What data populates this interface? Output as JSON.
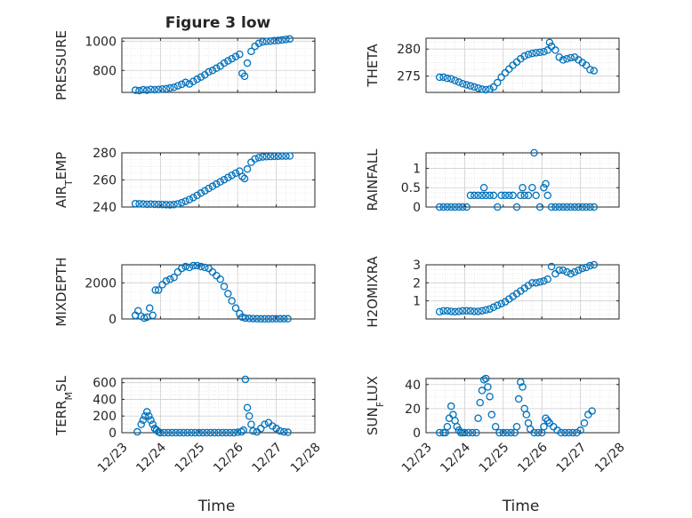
{
  "figure_title": "Figure 3 low",
  "marker_color": "#0072BD",
  "chart_data": [
    {
      "type": "scatter",
      "ylabel": "PRESSURE",
      "ylabel_parts": [
        {
          "t": "PRESSURE"
        }
      ],
      "xlim": [
        23,
        28
      ],
      "ylim": [
        650,
        1020
      ],
      "yticks": [
        800,
        1000
      ],
      "xticks": [
        23,
        24,
        25,
        26,
        27,
        28
      ],
      "x": [
        23.35,
        23.45,
        23.55,
        23.65,
        23.75,
        23.85,
        23.95,
        24.05,
        24.15,
        24.25,
        24.35,
        24.45,
        24.55,
        24.65,
        24.75,
        24.85,
        24.95,
        25.05,
        25.15,
        25.25,
        25.35,
        25.45,
        25.55,
        25.65,
        25.75,
        25.85,
        25.95,
        26.05,
        26.12,
        26.18,
        26.25,
        26.35,
        26.45,
        26.55,
        26.65,
        26.75,
        26.85,
        26.95,
        27.05,
        27.15,
        27.25,
        27.35
      ],
      "y": [
        665,
        662,
        668,
        665,
        670,
        668,
        670,
        673,
        675,
        680,
        685,
        695,
        705,
        718,
        708,
        725,
        740,
        755,
        770,
        790,
        800,
        815,
        830,
        850,
        865,
        880,
        895,
        910,
        780,
        760,
        850,
        930,
        965,
        985,
        995,
        998,
        1000,
        1003,
        1005,
        1008,
        1012,
        1015
      ]
    },
    {
      "type": "scatter",
      "ylabel": "THETA",
      "ylabel_parts": [
        {
          "t": "THETA"
        }
      ],
      "xlim": [
        23,
        28
      ],
      "ylim": [
        272,
        282
      ],
      "yticks": [
        275,
        280
      ],
      "xticks": [
        23,
        24,
        25,
        26,
        27,
        28
      ],
      "x": [
        23.35,
        23.45,
        23.55,
        23.65,
        23.75,
        23.85,
        23.95,
        24.05,
        24.15,
        24.25,
        24.35,
        24.45,
        24.55,
        24.65,
        24.75,
        24.85,
        24.95,
        25.05,
        25.15,
        25.25,
        25.35,
        25.45,
        25.55,
        25.65,
        25.75,
        25.85,
        25.95,
        26.05,
        26.15,
        26.2,
        26.25,
        26.35,
        26.45,
        26.55,
        26.65,
        26.75,
        26.85,
        26.95,
        27.05,
        27.15,
        27.25,
        27.35
      ],
      "y": [
        274.8,
        274.8,
        274.6,
        274.5,
        274.2,
        273.9,
        273.6,
        273.4,
        273.2,
        273.0,
        272.8,
        272.6,
        272.5,
        272.6,
        273.0,
        273.8,
        274.8,
        275.6,
        276.3,
        277.0,
        277.6,
        278.2,
        278.7,
        279.0,
        279.2,
        279.3,
        279.4,
        279.5,
        279.8,
        281.2,
        280.5,
        279.8,
        278.5,
        278.0,
        278.2,
        278.4,
        278.5,
        278.0,
        277.5,
        277.0,
        276.2,
        276.0
      ]
    },
    {
      "type": "scatter",
      "ylabel": "AIR_TEMP",
      "ylabel_parts": [
        {
          "t": "AIR"
        },
        {
          "t": "T",
          "sub": true
        },
        {
          "t": "EMP"
        }
      ],
      "xlim": [
        23,
        28
      ],
      "ylim": [
        240,
        280
      ],
      "yticks": [
        240,
        260,
        280
      ],
      "xticks": [
        23,
        24,
        25,
        26,
        27,
        28
      ],
      "x": [
        23.35,
        23.45,
        23.55,
        23.65,
        23.75,
        23.85,
        23.95,
        24.05,
        24.15,
        24.25,
        24.35,
        24.45,
        24.55,
        24.65,
        24.75,
        24.85,
        24.95,
        25.05,
        25.15,
        25.25,
        25.35,
        25.45,
        25.55,
        25.65,
        25.75,
        25.85,
        25.95,
        26.05,
        26.12,
        26.18,
        26.25,
        26.35,
        26.45,
        26.55,
        26.65,
        26.75,
        26.85,
        26.95,
        27.05,
        27.15,
        27.25,
        27.35
      ],
      "y": [
        242.5,
        242.4,
        242.2,
        242.0,
        242.1,
        242.0,
        241.9,
        241.8,
        241.7,
        241.6,
        241.8,
        242.3,
        243.2,
        244.3,
        245.5,
        247.0,
        248.6,
        250.3,
        252.0,
        253.7,
        255.3,
        257.0,
        258.6,
        260.2,
        261.8,
        263.4,
        265.0,
        266.5,
        262.5,
        261.0,
        268.0,
        273.0,
        275.5,
        276.5,
        277.0,
        277.2,
        277.3,
        277.4,
        277.5,
        277.6,
        277.6,
        277.7
      ]
    },
    {
      "type": "scatter",
      "ylabel": "RAINFALL",
      "ylabel_parts": [
        {
          "t": "RAINFALL"
        }
      ],
      "xlim": [
        23,
        28
      ],
      "ylim": [
        0,
        1.4
      ],
      "yticks": [
        0,
        0.5,
        1
      ],
      "xticks": [
        23,
        24,
        25,
        26,
        27,
        28
      ],
      "x": [
        23.35,
        23.45,
        23.55,
        23.65,
        23.75,
        23.85,
        23.95,
        24.05,
        24.15,
        24.25,
        24.35,
        24.45,
        24.5,
        24.55,
        24.65,
        24.75,
        24.85,
        24.95,
        25.05,
        25.15,
        25.25,
        25.35,
        25.45,
        25.5,
        25.55,
        25.65,
        25.75,
        25.8,
        25.85,
        25.95,
        26.05,
        26.1,
        26.15,
        26.25,
        26.35,
        26.45,
        26.55,
        26.65,
        26.75,
        26.85,
        26.95,
        27.05,
        27.15,
        27.25,
        27.35
      ],
      "y": [
        0,
        0,
        0,
        0,
        0,
        0,
        0,
        0,
        0.3,
        0.3,
        0.3,
        0.3,
        0.5,
        0.3,
        0.3,
        0.3,
        0,
        0.3,
        0.3,
        0.3,
        0.3,
        0,
        0.3,
        0.5,
        0.3,
        0.3,
        0.5,
        1.4,
        0.3,
        0,
        0.5,
        0.6,
        0.3,
        0,
        0,
        0,
        0,
        0,
        0,
        0,
        0,
        0,
        0,
        0,
        0
      ]
    },
    {
      "type": "scatter",
      "ylabel": "MIXDEPTH",
      "ylabel_parts": [
        {
          "t": "MIXDEPTH"
        }
      ],
      "xlim": [
        23,
        28
      ],
      "ylim": [
        0,
        3000
      ],
      "yticks": [
        0,
        2000
      ],
      "xticks": [
        23,
        24,
        25,
        26,
        27,
        28
      ],
      "x": [
        23.35,
        23.42,
        23.5,
        23.58,
        23.65,
        23.72,
        23.8,
        23.87,
        23.95,
        24.05,
        24.15,
        24.25,
        24.35,
        24.45,
        24.55,
        24.65,
        24.75,
        24.85,
        24.95,
        25.05,
        25.15,
        25.25,
        25.35,
        25.45,
        25.55,
        25.65,
        25.75,
        25.85,
        25.95,
        26.05,
        26.12,
        26.2,
        26.3,
        26.4,
        26.5,
        26.6,
        26.7,
        26.8,
        26.9,
        27.0,
        27.1,
        27.2,
        27.3
      ],
      "y": [
        200,
        450,
        150,
        50,
        100,
        600,
        200,
        1600,
        1600,
        1900,
        2100,
        2200,
        2300,
        2600,
        2800,
        2900,
        2850,
        2950,
        2950,
        2900,
        2850,
        2800,
        2600,
        2400,
        2200,
        1800,
        1400,
        1000,
        600,
        300,
        100,
        50,
        30,
        20,
        10,
        5,
        5,
        5,
        10,
        10,
        10,
        10,
        10
      ]
    },
    {
      "type": "scatter",
      "ylabel": "H2OMIXRA",
      "ylabel_parts": [
        {
          "t": "H2OMIXRA"
        }
      ],
      "xlim": [
        23,
        28
      ],
      "ylim": [
        0,
        3
      ],
      "yticks": [
        1,
        2,
        3
      ],
      "xticks": [
        23,
        24,
        25,
        26,
        27,
        28
      ],
      "x": [
        23.35,
        23.45,
        23.55,
        23.65,
        23.75,
        23.85,
        23.95,
        24.05,
        24.15,
        24.25,
        24.35,
        24.45,
        24.55,
        24.65,
        24.75,
        24.85,
        24.95,
        25.05,
        25.15,
        25.25,
        25.35,
        25.45,
        25.55,
        25.65,
        25.75,
        25.85,
        25.95,
        26.05,
        26.15,
        26.25,
        26.35,
        26.45,
        26.55,
        26.65,
        26.75,
        26.85,
        26.95,
        27.05,
        27.15,
        27.25,
        27.35
      ],
      "y": [
        0.4,
        0.45,
        0.45,
        0.42,
        0.4,
        0.42,
        0.45,
        0.45,
        0.44,
        0.42,
        0.42,
        0.45,
        0.5,
        0.55,
        0.65,
        0.75,
        0.85,
        0.95,
        1.1,
        1.25,
        1.4,
        1.55,
        1.7,
        1.85,
        2.0,
        2.0,
        2.05,
        2.1,
        2.2,
        2.9,
        2.5,
        2.7,
        2.7,
        2.6,
        2.5,
        2.6,
        2.7,
        2.8,
        2.85,
        2.95,
        3.0
      ]
    },
    {
      "type": "scatter",
      "ylabel": "TERR_MSL",
      "ylabel_parts": [
        {
          "t": "TERR"
        },
        {
          "t": "M",
          "sub": true
        },
        {
          "t": "SL"
        }
      ],
      "xlim": [
        23,
        28
      ],
      "ylim": [
        0,
        650
      ],
      "yticks": [
        0,
        200,
        400,
        600
      ],
      "xticks": [
        23,
        24,
        25,
        26,
        27,
        28
      ],
      "xtick_labels": [
        "12/23",
        "12/24",
        "12/25",
        "12/26",
        "12/27",
        "12/28"
      ],
      "xlabel": "Time",
      "x": [
        23.4,
        23.5,
        23.55,
        23.6,
        23.65,
        23.7,
        23.75,
        23.8,
        23.85,
        23.9,
        23.95,
        24.0,
        24.1,
        24.2,
        24.3,
        24.4,
        24.5,
        24.6,
        24.7,
        24.8,
        24.9,
        25.0,
        25.1,
        25.2,
        25.3,
        25.4,
        25.5,
        25.6,
        25.7,
        25.8,
        25.9,
        26.0,
        26.1,
        26.15,
        26.2,
        26.25,
        26.3,
        26.35,
        26.4,
        26.5,
        26.6,
        26.7,
        26.8,
        26.9,
        27.0,
        27.1,
        27.2,
        27.3
      ],
      "y": [
        10,
        100,
        150,
        200,
        250,
        200,
        150,
        100,
        50,
        30,
        10,
        0,
        0,
        0,
        0,
        0,
        0,
        0,
        0,
        0,
        0,
        0,
        0,
        0,
        0,
        0,
        0,
        0,
        0,
        0,
        0,
        5,
        10,
        30,
        640,
        300,
        200,
        100,
        20,
        10,
        50,
        100,
        120,
        80,
        50,
        20,
        10,
        5
      ]
    },
    {
      "type": "scatter",
      "ylabel": "SUN_FLUX",
      "ylabel_parts": [
        {
          "t": "SUN"
        },
        {
          "t": "F",
          "sub": true
        },
        {
          "t": "LUX"
        }
      ],
      "xlim": [
        23,
        28
      ],
      "ylim": [
        0,
        45
      ],
      "yticks": [
        0,
        20,
        40
      ],
      "xticks": [
        23,
        24,
        25,
        26,
        27,
        28
      ],
      "xtick_labels": [
        "12/23",
        "12/24",
        "12/25",
        "12/26",
        "12/27",
        "12/28"
      ],
      "xlabel": "Time",
      "x": [
        23.35,
        23.45,
        23.5,
        23.55,
        23.6,
        23.65,
        23.7,
        23.75,
        23.8,
        23.85,
        23.9,
        23.95,
        24.0,
        24.1,
        24.2,
        24.3,
        24.35,
        24.4,
        24.45,
        24.5,
        24.55,
        24.6,
        24.65,
        24.7,
        24.8,
        24.9,
        25.0,
        25.1,
        25.2,
        25.3,
        25.35,
        25.4,
        25.45,
        25.5,
        25.55,
        25.6,
        25.65,
        25.7,
        25.8,
        25.9,
        26.0,
        26.05,
        26.1,
        26.15,
        26.2,
        26.3,
        26.4,
        26.5,
        26.6,
        26.7,
        26.8,
        26.9,
        27.0,
        27.1,
        27.2,
        27.3
      ],
      "y": [
        0,
        0,
        0,
        5,
        12,
        22,
        15,
        10,
        5,
        2,
        0,
        0,
        0,
        0,
        0,
        0,
        12,
        25,
        35,
        44,
        45,
        38,
        30,
        15,
        5,
        0,
        0,
        0,
        0,
        0,
        5,
        28,
        42,
        38,
        20,
        15,
        8,
        3,
        0,
        0,
        0,
        5,
        12,
        10,
        8,
        5,
        2,
        0,
        0,
        0,
        0,
        0,
        2,
        8,
        15,
        18
      ]
    }
  ]
}
